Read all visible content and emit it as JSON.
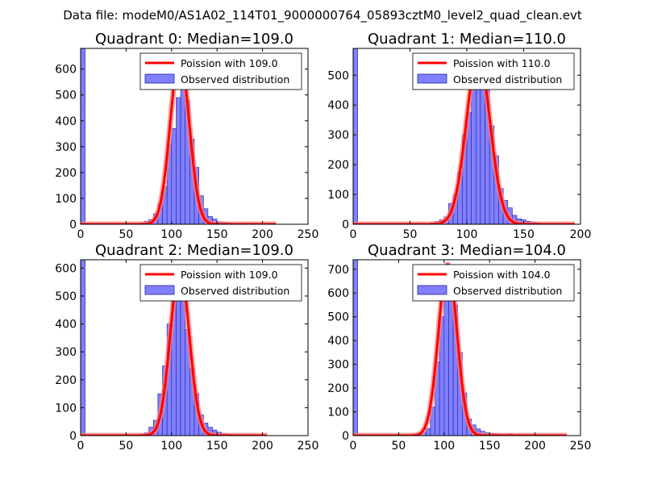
{
  "figure": {
    "suptitle": "Data file: modeM0/AS1A02_114T01_9000000764_05893cztM0_level2_quad_clean.evt"
  },
  "colors": {
    "bar_fill": "#8080ff",
    "bar_edge": "#2020a0",
    "poisson_line": "#ff0000",
    "poisson_glow": "#ff8080"
  },
  "chart_data": [
    {
      "type": "bar",
      "title": "Quadrant 0: Median=109.0",
      "xlim": [
        0,
        250
      ],
      "ylim": [
        0,
        680
      ],
      "xticks": [
        0,
        50,
        100,
        150,
        200,
        250
      ],
      "yticks": [
        0,
        100,
        200,
        300,
        400,
        500,
        600
      ],
      "legend": {
        "position": "top-right",
        "entries": [
          "Poission with 109.0",
          "Observed distribution"
        ]
      },
      "bin_width": 5,
      "bins": [
        {
          "x": 0,
          "v": 680
        },
        {
          "x": 65,
          "v": 5
        },
        {
          "x": 70,
          "v": 12
        },
        {
          "x": 75,
          "v": 18
        },
        {
          "x": 80,
          "v": 40
        },
        {
          "x": 85,
          "v": 80
        },
        {
          "x": 90,
          "v": 145
        },
        {
          "x": 95,
          "v": 310
        },
        {
          "x": 100,
          "v": 370
        },
        {
          "x": 105,
          "v": 490
        },
        {
          "x": 110,
          "v": 555
        },
        {
          "x": 115,
          "v": 480
        },
        {
          "x": 120,
          "v": 330
        },
        {
          "x": 125,
          "v": 220
        },
        {
          "x": 130,
          "v": 110
        },
        {
          "x": 135,
          "v": 60
        },
        {
          "x": 140,
          "v": 30
        },
        {
          "x": 145,
          "v": 20
        },
        {
          "x": 150,
          "v": 10
        },
        {
          "x": 155,
          "v": 8
        },
        {
          "x": 160,
          "v": 5
        },
        {
          "x": 170,
          "v": 3
        }
      ],
      "poisson": {
        "mean": 109.0,
        "peak": 650,
        "x_range": [
          0,
          215
        ]
      }
    },
    {
      "type": "bar",
      "title": "Quadrant 1: Median=110.0",
      "xlim": [
        0,
        200
      ],
      "ylim": [
        0,
        590
      ],
      "xticks": [
        0,
        50,
        100,
        150,
        200
      ],
      "yticks": [
        0,
        100,
        200,
        300,
        400,
        500
      ],
      "legend": {
        "position": "top-right",
        "entries": [
          "Poission with 110.0",
          "Observed distribution"
        ]
      },
      "bin_width": 4,
      "bins": [
        {
          "x": 0,
          "v": 590
        },
        {
          "x": 68,
          "v": 5
        },
        {
          "x": 72,
          "v": 10
        },
        {
          "x": 76,
          "v": 15
        },
        {
          "x": 80,
          "v": 25
        },
        {
          "x": 84,
          "v": 70
        },
        {
          "x": 88,
          "v": 100
        },
        {
          "x": 92,
          "v": 175
        },
        {
          "x": 96,
          "v": 300
        },
        {
          "x": 100,
          "v": 375
        },
        {
          "x": 104,
          "v": 470
        },
        {
          "x": 108,
          "v": 530
        },
        {
          "x": 112,
          "v": 545
        },
        {
          "x": 116,
          "v": 450
        },
        {
          "x": 120,
          "v": 330
        },
        {
          "x": 124,
          "v": 230
        },
        {
          "x": 128,
          "v": 120
        },
        {
          "x": 132,
          "v": 80
        },
        {
          "x": 136,
          "v": 55
        },
        {
          "x": 140,
          "v": 30
        },
        {
          "x": 144,
          "v": 18
        },
        {
          "x": 148,
          "v": 15
        },
        {
          "x": 152,
          "v": 10
        },
        {
          "x": 156,
          "v": 8
        },
        {
          "x": 160,
          "v": 5
        }
      ],
      "poisson": {
        "mean": 110.0,
        "peak": 565,
        "x_range": [
          0,
          195
        ]
      }
    },
    {
      "type": "bar",
      "title": "Quadrant 2: Median=109.0",
      "xlim": [
        0,
        250
      ],
      "ylim": [
        0,
        630
      ],
      "xticks": [
        0,
        50,
        100,
        150,
        200,
        250
      ],
      "yticks": [
        0,
        100,
        200,
        300,
        400,
        500,
        600
      ],
      "legend": {
        "position": "top-right",
        "entries": [
          "Poission with 109.0",
          "Observed distribution"
        ]
      },
      "bin_width": 5,
      "bins": [
        {
          "x": 0,
          "v": 630
        },
        {
          "x": 65,
          "v": 5
        },
        {
          "x": 70,
          "v": 10
        },
        {
          "x": 75,
          "v": 30
        },
        {
          "x": 80,
          "v": 55
        },
        {
          "x": 85,
          "v": 150
        },
        {
          "x": 90,
          "v": 250
        },
        {
          "x": 95,
          "v": 400
        },
        {
          "x": 100,
          "v": 500
        },
        {
          "x": 105,
          "v": 560
        },
        {
          "x": 110,
          "v": 500
        },
        {
          "x": 115,
          "v": 380
        },
        {
          "x": 120,
          "v": 240
        },
        {
          "x": 125,
          "v": 150
        },
        {
          "x": 130,
          "v": 75
        },
        {
          "x": 135,
          "v": 45
        },
        {
          "x": 140,
          "v": 30
        },
        {
          "x": 145,
          "v": 20
        },
        {
          "x": 150,
          "v": 12
        },
        {
          "x": 155,
          "v": 8
        },
        {
          "x": 160,
          "v": 5
        }
      ],
      "poisson": {
        "mean": 109.0,
        "peak": 600,
        "x_range": [
          0,
          205
        ]
      }
    },
    {
      "type": "bar",
      "title": "Quadrant 3: Median=104.0",
      "xlim": [
        0,
        250
      ],
      "ylim": [
        0,
        740
      ],
      "xticks": [
        0,
        50,
        100,
        150,
        200,
        250
      ],
      "yticks": [
        0,
        100,
        200,
        300,
        400,
        500,
        600,
        700
      ],
      "legend": {
        "position": "top-right",
        "entries": [
          "Poission with 104.0",
          "Observed distribution"
        ]
      },
      "bin_width": 5,
      "bins": [
        {
          "x": 0,
          "v": 740
        },
        {
          "x": 70,
          "v": 5
        },
        {
          "x": 75,
          "v": 12
        },
        {
          "x": 80,
          "v": 30
        },
        {
          "x": 85,
          "v": 120
        },
        {
          "x": 90,
          "v": 310
        },
        {
          "x": 95,
          "v": 500
        },
        {
          "x": 100,
          "v": 580
        },
        {
          "x": 105,
          "v": 660
        },
        {
          "x": 110,
          "v": 550
        },
        {
          "x": 115,
          "v": 350
        },
        {
          "x": 120,
          "v": 180
        },
        {
          "x": 125,
          "v": 70
        },
        {
          "x": 130,
          "v": 45
        },
        {
          "x": 135,
          "v": 28
        },
        {
          "x": 140,
          "v": 18
        },
        {
          "x": 145,
          "v": 12
        },
        {
          "x": 150,
          "v": 10
        },
        {
          "x": 155,
          "v": 8
        },
        {
          "x": 160,
          "v": 6
        },
        {
          "x": 165,
          "v": 5
        },
        {
          "x": 170,
          "v": 8
        },
        {
          "x": 175,
          "v": 4
        },
        {
          "x": 180,
          "v": 5
        },
        {
          "x": 185,
          "v": 3
        }
      ],
      "poisson": {
        "mean": 104.0,
        "peak": 720,
        "x_range": [
          0,
          235
        ]
      }
    }
  ]
}
